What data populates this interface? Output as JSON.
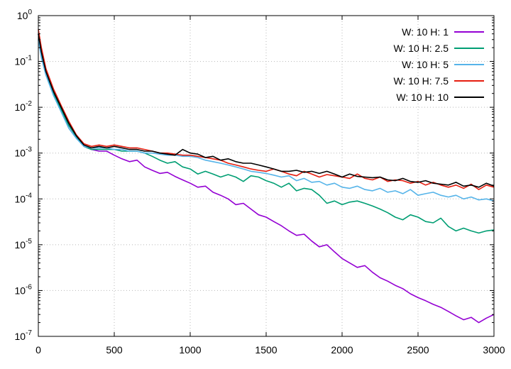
{
  "chart_data": {
    "type": "line",
    "title": "",
    "xlabel": "",
    "ylabel": "",
    "xlim": [
      0,
      3000
    ],
    "ylim": [
      1e-07,
      1
    ],
    "y_scale": "log",
    "grid": true,
    "legend_position": "top-right",
    "x_ticks": [
      "0",
      "500",
      "1000",
      "1500",
      "2000",
      "2500",
      "3000"
    ],
    "y_ticks": [
      {
        "base": "10",
        "exp": "0"
      },
      {
        "base": "10",
        "exp": "-1"
      },
      {
        "base": "10",
        "exp": "-2"
      },
      {
        "base": "10",
        "exp": "-3"
      },
      {
        "base": "10",
        "exp": "-4"
      },
      {
        "base": "10",
        "exp": "-5"
      },
      {
        "base": "10",
        "exp": "-6"
      },
      {
        "base": "10",
        "exp": "-7"
      }
    ],
    "series": [
      {
        "name": "W: 10 H: 1",
        "color": "#9400d3",
        "x": [
          0,
          20,
          50,
          100,
          150,
          200,
          250,
          300,
          350,
          400,
          450,
          500,
          550,
          600,
          650,
          700,
          750,
          800,
          850,
          900,
          950,
          1000,
          1050,
          1100,
          1150,
          1200,
          1250,
          1300,
          1350,
          1400,
          1450,
          1500,
          1550,
          1600,
          1650,
          1700,
          1750,
          1800,
          1850,
          1900,
          1950,
          2000,
          2050,
          2100,
          2150,
          2200,
          2250,
          2300,
          2350,
          2400,
          2450,
          2500,
          2550,
          2600,
          2650,
          2700,
          2750,
          2800,
          2850,
          2900,
          2950,
          3000
        ],
        "y": [
          0.4,
          0.15,
          0.06,
          0.02,
          0.009,
          0.004,
          0.0023,
          0.0014,
          0.0012,
          0.0011,
          0.0011,
          0.0009,
          0.00075,
          0.00065,
          0.0007,
          0.0005,
          0.00042,
          0.00036,
          0.00038,
          0.00031,
          0.00026,
          0.00022,
          0.00018,
          0.00019,
          0.00014,
          0.00012,
          0.0001,
          7.5e-05,
          8e-05,
          6e-05,
          4.5e-05,
          4e-05,
          3.2e-05,
          2.6e-05,
          2e-05,
          1.6e-05,
          1.7e-05,
          1.2e-05,
          9e-06,
          1e-05,
          7e-06,
          5e-06,
          4e-06,
          3.2e-06,
          3.5e-06,
          2.5e-06,
          1.9e-06,
          1.6e-06,
          1.3e-06,
          1.1e-06,
          8.5e-07,
          7e-07,
          6e-07,
          5e-07,
          4.3e-07,
          3.5e-07,
          2.8e-07,
          2.3e-07,
          2.6e-07,
          2e-07,
          2.5e-07,
          3e-07
        ]
      },
      {
        "name": "W: 10 H: 2.5",
        "color": "#009e73",
        "x": [
          0,
          20,
          50,
          100,
          150,
          200,
          250,
          300,
          350,
          400,
          450,
          500,
          550,
          600,
          650,
          700,
          750,
          800,
          850,
          900,
          950,
          1000,
          1050,
          1100,
          1150,
          1200,
          1250,
          1300,
          1350,
          1400,
          1450,
          1500,
          1550,
          1600,
          1650,
          1700,
          1750,
          1800,
          1850,
          1900,
          1950,
          2000,
          2050,
          2100,
          2150,
          2200,
          2250,
          2300,
          2350,
          2400,
          2450,
          2500,
          2550,
          2600,
          2650,
          2700,
          2750,
          2800,
          2850,
          2900,
          2950,
          3000
        ],
        "y": [
          0.4,
          0.15,
          0.06,
          0.02,
          0.009,
          0.004,
          0.0023,
          0.0014,
          0.0012,
          0.0012,
          0.0012,
          0.0012,
          0.0011,
          0.0011,
          0.0011,
          0.001,
          0.00085,
          0.0007,
          0.0006,
          0.00065,
          0.0005,
          0.00045,
          0.00035,
          0.0004,
          0.00035,
          0.0003,
          0.00034,
          0.0003,
          0.00024,
          0.00032,
          0.0003,
          0.00025,
          0.00022,
          0.00018,
          0.00022,
          0.00015,
          0.00017,
          0.00016,
          0.00012,
          8e-05,
          9e-05,
          7.5e-05,
          8.5e-05,
          9e-05,
          8e-05,
          7e-05,
          6e-05,
          5e-05,
          4e-05,
          3.5e-05,
          4.5e-05,
          4e-05,
          3.2e-05,
          3e-05,
          3.8e-05,
          2.5e-05,
          2e-05,
          2.3e-05,
          2e-05,
          1.8e-05,
          2e-05,
          2.1e-05
        ]
      },
      {
        "name": "W: 10 H: 5",
        "color": "#56b4e9",
        "x": [
          0,
          20,
          50,
          100,
          150,
          200,
          250,
          300,
          350,
          400,
          450,
          500,
          550,
          600,
          650,
          700,
          750,
          800,
          850,
          900,
          950,
          1000,
          1050,
          1100,
          1150,
          1200,
          1250,
          1300,
          1350,
          1400,
          1450,
          1500,
          1550,
          1600,
          1650,
          1700,
          1750,
          1800,
          1850,
          1900,
          1950,
          2000,
          2050,
          2100,
          2150,
          2200,
          2250,
          2300,
          2350,
          2400,
          2450,
          2500,
          2550,
          2600,
          2650,
          2700,
          2750,
          2800,
          2850,
          2900,
          2950,
          3000
        ],
        "y": [
          0.3,
          0.12,
          0.05,
          0.018,
          0.008,
          0.0035,
          0.0021,
          0.0014,
          0.0013,
          0.0013,
          0.0013,
          0.0012,
          0.0012,
          0.0011,
          0.0011,
          0.001,
          0.001,
          0.00095,
          0.0009,
          0.0009,
          0.00085,
          0.00085,
          0.0008,
          0.0007,
          0.00065,
          0.0006,
          0.00055,
          0.0005,
          0.00045,
          0.0004,
          0.00038,
          0.00036,
          0.00033,
          0.0003,
          0.00032,
          0.00025,
          0.00028,
          0.00023,
          0.00024,
          0.0002,
          0.00022,
          0.00018,
          0.00017,
          0.00019,
          0.00016,
          0.00015,
          0.00017,
          0.00014,
          0.00015,
          0.00013,
          0.00016,
          0.00012,
          0.00013,
          0.00014,
          0.00012,
          0.00011,
          0.00012,
          0.0001,
          0.00011,
          9.5e-05,
          0.0001,
          9e-05
        ]
      },
      {
        "name": "W: 10 H: 7.5",
        "color": "#e51e10",
        "x": [
          0,
          20,
          50,
          100,
          150,
          200,
          250,
          300,
          350,
          400,
          450,
          500,
          550,
          600,
          650,
          700,
          750,
          800,
          850,
          900,
          950,
          1000,
          1050,
          1100,
          1150,
          1200,
          1250,
          1300,
          1350,
          1400,
          1450,
          1500,
          1550,
          1600,
          1650,
          1700,
          1750,
          1800,
          1850,
          1900,
          1950,
          2000,
          2050,
          2100,
          2150,
          2200,
          2250,
          2300,
          2350,
          2400,
          2450,
          2500,
          2550,
          2600,
          2650,
          2700,
          2750,
          2800,
          2850,
          2900,
          2950,
          3000
        ],
        "y": [
          0.5,
          0.2,
          0.07,
          0.025,
          0.011,
          0.005,
          0.0025,
          0.0016,
          0.0014,
          0.0015,
          0.0014,
          0.0015,
          0.0014,
          0.0013,
          0.0013,
          0.0012,
          0.0011,
          0.001,
          0.001,
          0.00095,
          0.0009,
          0.0009,
          0.00085,
          0.0008,
          0.00075,
          0.0007,
          0.0006,
          0.00055,
          0.0005,
          0.00045,
          0.00042,
          0.0004,
          0.00045,
          0.0004,
          0.00035,
          0.00032,
          0.0004,
          0.00035,
          0.0003,
          0.00034,
          0.00032,
          0.0003,
          0.00028,
          0.00035,
          0.00028,
          0.00026,
          0.0003,
          0.00024,
          0.00026,
          0.00025,
          0.00022,
          0.00024,
          0.0002,
          0.00023,
          0.0002,
          0.00018,
          0.0002,
          0.00017,
          0.00021,
          0.00016,
          0.0002,
          0.00018
        ]
      },
      {
        "name": "W: 10 H: 10",
        "color": "#000000",
        "x": [
          0,
          20,
          50,
          100,
          150,
          200,
          250,
          300,
          350,
          400,
          450,
          500,
          550,
          600,
          650,
          700,
          750,
          800,
          850,
          900,
          950,
          1000,
          1050,
          1100,
          1150,
          1200,
          1250,
          1300,
          1350,
          1400,
          1450,
          1500,
          1550,
          1600,
          1650,
          1700,
          1750,
          1800,
          1850,
          1900,
          1950,
          2000,
          2050,
          2100,
          2150,
          2200,
          2250,
          2300,
          2350,
          2400,
          2450,
          2500,
          2550,
          2600,
          2650,
          2700,
          2750,
          2800,
          2850,
          2900,
          2950,
          3000
        ],
        "y": [
          0.4,
          0.16,
          0.06,
          0.022,
          0.01,
          0.0045,
          0.0024,
          0.0015,
          0.0013,
          0.0014,
          0.0013,
          0.0014,
          0.0013,
          0.0012,
          0.0012,
          0.0011,
          0.0011,
          0.001,
          0.00095,
          0.0009,
          0.0012,
          0.001,
          0.00095,
          0.0008,
          0.00085,
          0.0007,
          0.00075,
          0.00065,
          0.0006,
          0.0006,
          0.00055,
          0.0005,
          0.00045,
          0.0004,
          0.0004,
          0.00042,
          0.00038,
          0.0004,
          0.00036,
          0.0004,
          0.00035,
          0.0003,
          0.00035,
          0.00031,
          0.0003,
          0.00029,
          0.0003,
          0.00026,
          0.00025,
          0.00028,
          0.00024,
          0.00023,
          0.00025,
          0.00022,
          0.00021,
          0.0002,
          0.00023,
          0.00019,
          0.0002,
          0.00018,
          0.00022,
          0.00019
        ]
      }
    ]
  }
}
